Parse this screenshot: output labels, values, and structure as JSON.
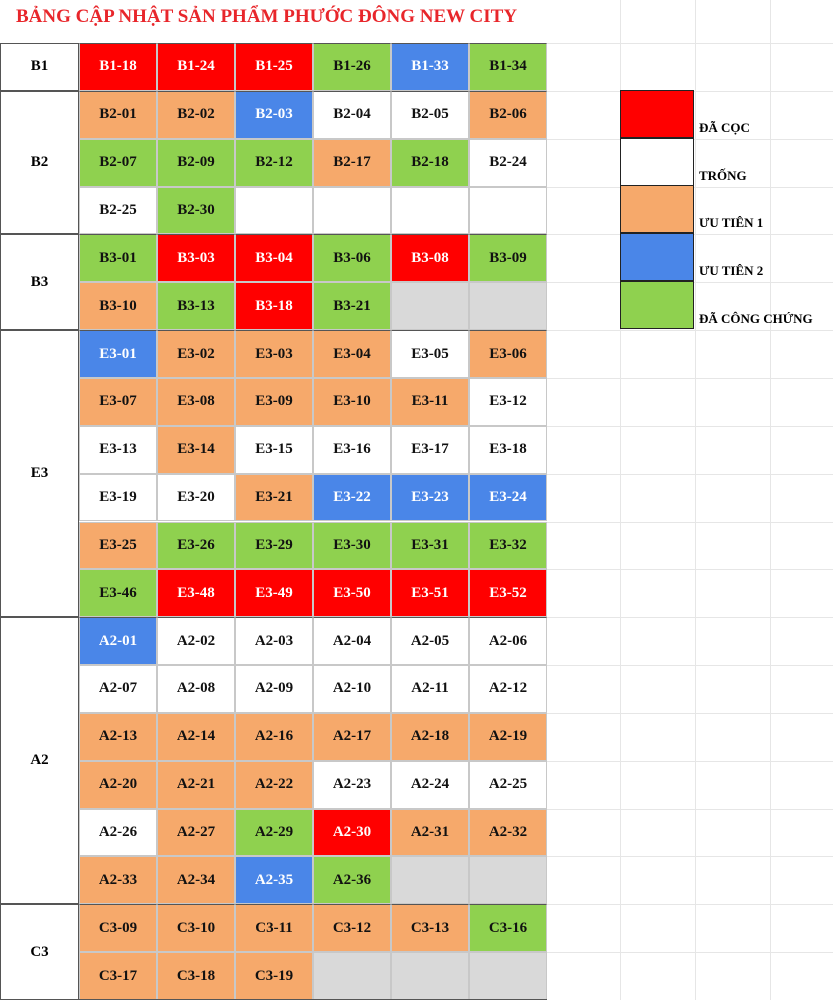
{
  "title": "BẢNG CẬP NHẬT SẢN PHẨM PHƯỚC ĐÔNG NEW CITY",
  "groups": [
    {
      "label": "B1",
      "rows": [
        [
          {
            "text": "B1-18",
            "color": "#ff0000"
          },
          {
            "text": "B1-24",
            "color": "#ff0000"
          },
          {
            "text": "B1-25",
            "color": "#ff0000"
          },
          {
            "text": "B1-26",
            "color": "#8fd14f"
          },
          {
            "text": "B1-33",
            "color": "#4a86e8"
          },
          {
            "text": "B1-34",
            "color": "#8fd14f"
          }
        ]
      ]
    },
    {
      "label": "B2",
      "rows": [
        [
          {
            "text": "B2-01",
            "color": "#f6a96b"
          },
          {
            "text": "B2-02",
            "color": "#f6a96b"
          },
          {
            "text": "B2-03",
            "color": "#4a86e8"
          },
          {
            "text": "B2-04",
            "color": "#ffffff"
          },
          {
            "text": "B2-05",
            "color": "#ffffff"
          },
          {
            "text": "B2-06",
            "color": "#f6a96b"
          }
        ],
        [
          {
            "text": "B2-07",
            "color": "#8fd14f"
          },
          {
            "text": "B2-09",
            "color": "#8fd14f"
          },
          {
            "text": "B2-12",
            "color": "#8fd14f"
          },
          {
            "text": "B2-17",
            "color": "#f6a96b"
          },
          {
            "text": "B2-18",
            "color": "#8fd14f"
          },
          {
            "text": "B2-24",
            "color": "#ffffff"
          }
        ],
        [
          {
            "text": "B2-25",
            "color": "#ffffff"
          },
          {
            "text": "B2-30",
            "color": "#8fd14f"
          },
          {
            "color": "#ffffff"
          },
          {
            "color": "#ffffff"
          },
          {
            "color": "#ffffff"
          },
          {
            "color": "#ffffff"
          }
        ]
      ]
    },
    {
      "label": "B3",
      "rows": [
        [
          {
            "text": "B3-01",
            "color": "#8fd14f"
          },
          {
            "text": "B3-03",
            "color": "#ff0000"
          },
          {
            "text": "B3-04",
            "color": "#ff0000"
          },
          {
            "text": "B3-06",
            "color": "#8fd14f"
          },
          {
            "text": "B3-08",
            "color": "#ff0000"
          },
          {
            "text": "B3-09",
            "color": "#8fd14f"
          }
        ],
        [
          {
            "text": "B3-10",
            "color": "#f6a96b"
          },
          {
            "text": "B3-13",
            "color": "#8fd14f"
          },
          {
            "text": "B3-18",
            "color": "#ff0000"
          },
          {
            "text": "B3-21",
            "color": "#8fd14f"
          },
          {
            "color": "#d9d9d9"
          },
          {
            "color": "#d9d9d9"
          }
        ]
      ]
    },
    {
      "label": "E3",
      "rows": [
        [
          {
            "text": "E3-01",
            "color": "#4a86e8"
          },
          {
            "text": "E3-02",
            "color": "#f6a96b"
          },
          {
            "text": "E3-03",
            "color": "#f6a96b"
          },
          {
            "text": "E3-04",
            "color": "#f6a96b"
          },
          {
            "text": "E3-05",
            "color": "#ffffff"
          },
          {
            "text": "E3-06",
            "color": "#f6a96b"
          }
        ],
        [
          {
            "text": "E3-07",
            "color": "#f6a96b"
          },
          {
            "text": "E3-08",
            "color": "#f6a96b"
          },
          {
            "text": "E3-09",
            "color": "#f6a96b"
          },
          {
            "text": "E3-10",
            "color": "#f6a96b"
          },
          {
            "text": "E3-11",
            "color": "#f6a96b"
          },
          {
            "text": "E3-12",
            "color": "#ffffff"
          }
        ],
        [
          {
            "text": "E3-13",
            "color": "#ffffff"
          },
          {
            "text": "E3-14",
            "color": "#f6a96b"
          },
          {
            "text": "E3-15",
            "color": "#ffffff"
          },
          {
            "text": "E3-16",
            "color": "#ffffff"
          },
          {
            "text": "E3-17",
            "color": "#ffffff"
          },
          {
            "text": "E3-18",
            "color": "#ffffff"
          }
        ],
        [
          {
            "text": "E3-19",
            "color": "#ffffff"
          },
          {
            "text": "E3-20",
            "color": "#ffffff"
          },
          {
            "text": "E3-21",
            "color": "#f6a96b"
          },
          {
            "text": "E3-22",
            "color": "#4a86e8"
          },
          {
            "text": "E3-23",
            "color": "#4a86e8"
          },
          {
            "text": "E3-24",
            "color": "#4a86e8"
          }
        ],
        [
          {
            "text": "E3-25",
            "color": "#f6a96b"
          },
          {
            "text": "E3-26",
            "color": "#8fd14f"
          },
          {
            "text": "E3-29",
            "color": "#8fd14f"
          },
          {
            "text": "E3-30",
            "color": "#8fd14f"
          },
          {
            "text": "E3-31",
            "color": "#8fd14f"
          },
          {
            "text": "E3-32",
            "color": "#8fd14f"
          }
        ],
        [
          {
            "text": "E3-46",
            "color": "#8fd14f"
          },
          {
            "text": "E3-48",
            "color": "#ff0000"
          },
          {
            "text": "E3-49",
            "color": "#ff0000"
          },
          {
            "text": "E3-50",
            "color": "#ff0000"
          },
          {
            "text": "E3-51",
            "color": "#ff0000"
          },
          {
            "text": "E3-52",
            "color": "#ff0000"
          }
        ]
      ]
    },
    {
      "label": "A2",
      "rows": [
        [
          {
            "text": "A2-01",
            "color": "#4a86e8"
          },
          {
            "text": "A2-02",
            "color": "#ffffff"
          },
          {
            "text": "A2-03",
            "color": "#ffffff"
          },
          {
            "text": "A2-04",
            "color": "#ffffff"
          },
          {
            "text": "A2-05",
            "color": "#ffffff"
          },
          {
            "text": "A2-06",
            "color": "#ffffff"
          }
        ],
        [
          {
            "text": "A2-07",
            "color": "#ffffff"
          },
          {
            "text": "A2-08",
            "color": "#ffffff"
          },
          {
            "text": "A2-09",
            "color": "#ffffff"
          },
          {
            "text": "A2-10",
            "color": "#ffffff"
          },
          {
            "text": "A2-11",
            "color": "#ffffff"
          },
          {
            "text": "A2-12",
            "color": "#ffffff"
          }
        ],
        [
          {
            "text": "A2-13",
            "color": "#f6a96b"
          },
          {
            "text": "A2-14",
            "color": "#f6a96b"
          },
          {
            "text": "A2-16",
            "color": "#f6a96b"
          },
          {
            "text": "A2-17",
            "color": "#f6a96b"
          },
          {
            "text": "A2-18",
            "color": "#f6a96b"
          },
          {
            "text": "A2-19",
            "color": "#f6a96b"
          }
        ],
        [
          {
            "text": "A2-20",
            "color": "#f6a96b"
          },
          {
            "text": "A2-21",
            "color": "#f6a96b"
          },
          {
            "text": "A2-22",
            "color": "#f6a96b"
          },
          {
            "text": "A2-23",
            "color": "#ffffff"
          },
          {
            "text": "A2-24",
            "color": "#ffffff"
          },
          {
            "text": "A2-25",
            "color": "#ffffff"
          }
        ],
        [
          {
            "text": "A2-26",
            "color": "#ffffff"
          },
          {
            "text": "A2-27",
            "color": "#f6a96b"
          },
          {
            "text": "A2-29",
            "color": "#8fd14f"
          },
          {
            "text": "A2-30",
            "color": "#ff0000"
          },
          {
            "text": "A2-31",
            "color": "#f6a96b"
          },
          {
            "text": "A2-32",
            "color": "#f6a96b"
          }
        ],
        [
          {
            "text": "A2-33",
            "color": "#f6a96b"
          },
          {
            "text": "A2-34",
            "color": "#f6a96b"
          },
          {
            "text": "A2-35",
            "color": "#4a86e8"
          },
          {
            "text": "A2-36",
            "color": "#8fd14f"
          },
          {
            "color": "#d9d9d9"
          },
          {
            "color": "#d9d9d9"
          }
        ]
      ]
    },
    {
      "label": "C3",
      "rows": [
        [
          {
            "text": "C3-09",
            "color": "#f6a96b"
          },
          {
            "text": "C3-10",
            "color": "#f6a96b"
          },
          {
            "text": "C3-11",
            "color": "#f6a96b"
          },
          {
            "text": "C3-12",
            "color": "#f6a96b"
          },
          {
            "text": "C3-13",
            "color": "#f6a96b"
          },
          {
            "text": "C3-16",
            "color": "#8fd14f"
          }
        ],
        [
          {
            "text": "C3-17",
            "color": "#f6a96b"
          },
          {
            "text": "C3-18",
            "color": "#f6a96b"
          },
          {
            "text": "C3-19",
            "color": "#f6a96b"
          },
          {
            "color": "#d9d9d9"
          },
          {
            "color": "#d9d9d9"
          },
          {
            "color": "#d9d9d9"
          }
        ]
      ]
    }
  ],
  "legend": [
    {
      "label": "ĐÃ CỌC",
      "color": "#ff0000"
    },
    {
      "label": "TRỐNG",
      "color": "#ffffff"
    },
    {
      "label": "ƯU TIÊN 1",
      "color": "#f6a96b"
    },
    {
      "label": "ƯU TIÊN 2",
      "color": "#4a86e8"
    },
    {
      "label": "ĐÃ CÔNG CHỨNG",
      "color": "#8fd14f"
    }
  ]
}
